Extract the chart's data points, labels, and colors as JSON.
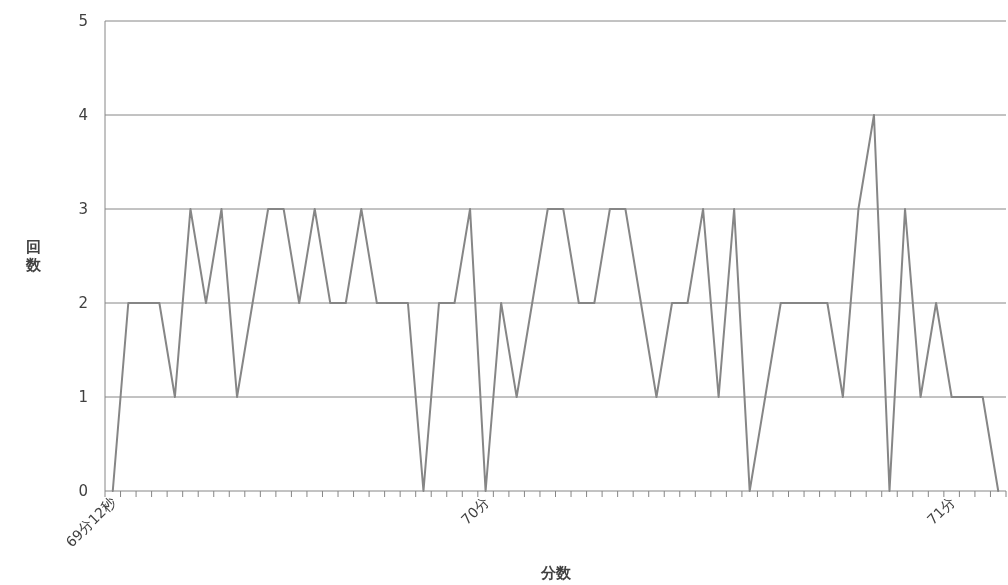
{
  "chart_data": {
    "type": "line",
    "xlabel": "分数",
    "ylabel": "回数",
    "categories": [
      "69分12秒",
      null,
      null,
      null,
      null,
      null,
      null,
      null,
      null,
      null,
      null,
      null,
      null,
      null,
      null,
      null,
      null,
      null,
      null,
      null,
      null,
      null,
      null,
      null,
      "70分",
      null,
      null,
      null,
      null,
      null,
      null,
      null,
      null,
      null,
      null,
      null,
      null,
      null,
      null,
      null,
      null,
      null,
      null,
      null,
      null,
      null,
      null,
      null,
      null,
      null,
      null,
      null,
      null,
      null,
      "71分",
      null,
      null,
      null
    ],
    "series": [
      {
        "color": "#868686",
        "values": [
          0,
          2,
          2,
          2,
          1,
          3,
          2,
          3,
          1,
          2,
          3,
          3,
          2,
          3,
          2,
          2,
          3,
          2,
          2,
          2,
          0,
          2,
          2,
          3,
          0,
          2,
          1,
          2,
          3,
          3,
          2,
          2,
          3,
          3,
          2,
          1,
          2,
          2,
          3,
          1,
          3,
          0,
          1,
          2,
          2,
          2,
          2,
          1,
          3,
          4,
          0,
          3,
          1,
          2,
          1,
          1,
          1,
          0
        ]
      }
    ],
    "ylim": [
      0,
      5
    ],
    "yticks": [
      0,
      1,
      2,
      3,
      4,
      5
    ],
    "grid": "y"
  }
}
